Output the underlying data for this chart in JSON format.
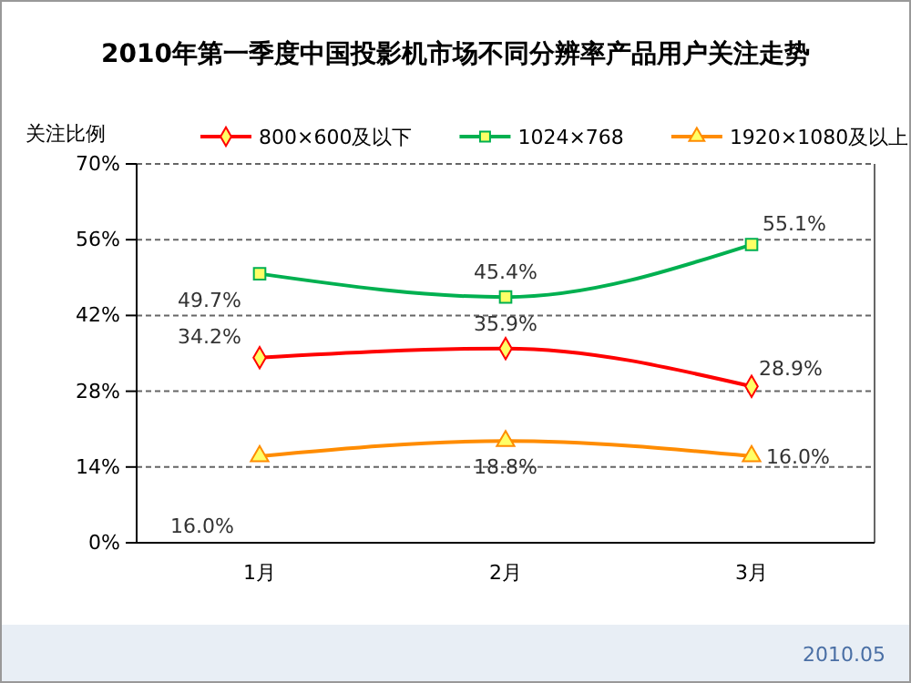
{
  "chart_data": {
    "type": "line",
    "title": "2010年第一季度中国投影机市场不同分辨率产品用户关注走势",
    "ylabel": "关注比例",
    "categories": [
      "1月",
      "2月",
      "3月"
    ],
    "series": [
      {
        "name": "800×600及以下",
        "color": "#ff0000",
        "marker": "diamond",
        "values": [
          34.2,
          35.9,
          28.9
        ],
        "value_labels": [
          "34.2%",
          "35.9%",
          "28.9%"
        ]
      },
      {
        "name": "1024×768",
        "color": "#00b050",
        "marker": "square",
        "values": [
          49.7,
          45.4,
          55.1
        ],
        "value_labels": [
          "49.7%",
          "45.4%",
          "55.1%"
        ]
      },
      {
        "name": "1920×1080及以上",
        "color": "#ff8c00",
        "marker": "triangle",
        "values": [
          16.0,
          18.8,
          16.0
        ],
        "value_labels": [
          "16.0%",
          "18.8%",
          "16.0%"
        ]
      }
    ],
    "ylim": [
      0,
      70
    ],
    "yticks": [
      {
        "value": 0,
        "label": "0%"
      },
      {
        "value": 14,
        "label": "14%"
      },
      {
        "value": 28,
        "label": "28%"
      },
      {
        "value": 42,
        "label": "42%"
      },
      {
        "value": 56,
        "label": "56%"
      },
      {
        "value": 70,
        "label": "70%"
      }
    ],
    "grid": "y",
    "legend": "top",
    "annotations": [
      "2010.05"
    ]
  }
}
